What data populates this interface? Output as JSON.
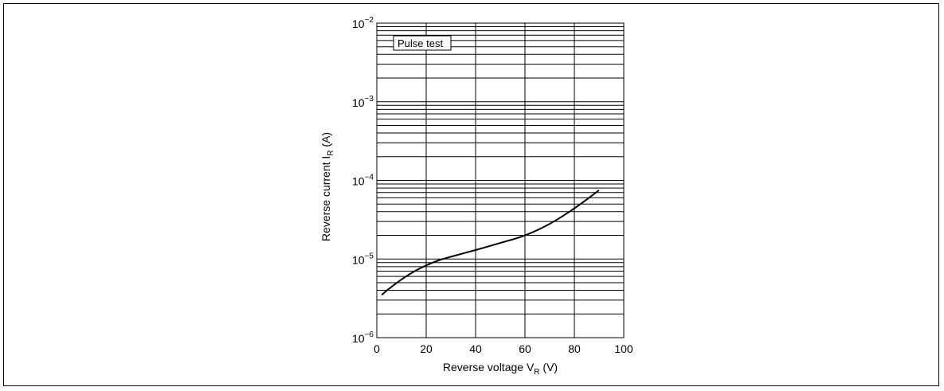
{
  "chart_data": {
    "type": "line",
    "title": "",
    "xlabel": {
      "main": "Reverse voltage  V",
      "sub": "R",
      "unit": " (V)"
    },
    "ylabel": {
      "main": "Reverse current  I",
      "sub": "R",
      "unit": " (A)"
    },
    "x_ticks": [
      "0",
      "20",
      "40",
      "60",
      "80",
      "100"
    ],
    "x_tick_values": [
      0,
      20,
      40,
      60,
      80,
      100
    ],
    "y_ticks": [
      {
        "base": "10",
        "exp": "−6",
        "value": 1e-06
      },
      {
        "base": "10",
        "exp": "−5",
        "value": 1e-05
      },
      {
        "base": "10",
        "exp": "−4",
        "value": 0.0001
      },
      {
        "base": "10",
        "exp": "−3",
        "value": 0.001
      },
      {
        "base": "10",
        "exp": "−2",
        "value": 0.01
      }
    ],
    "xlim": [
      0,
      100
    ],
    "ylim": [
      1e-06,
      0.01
    ],
    "y_scale": "log",
    "grid": true,
    "annotation": "Pulse test",
    "series": [
      {
        "x": [
          2,
          5,
          10,
          15,
          20,
          25,
          30,
          40,
          50,
          60,
          70,
          80,
          90
        ],
        "y": [
          3.5e-06,
          4.2e-06,
          5.5e-06,
          6.9e-06,
          8.3e-06,
          9.6e-06,
          1.07e-05,
          1.3e-05,
          1.6e-05,
          2e-05,
          2.8e-05,
          4.4e-05,
          7.5e-05
        ]
      }
    ]
  }
}
